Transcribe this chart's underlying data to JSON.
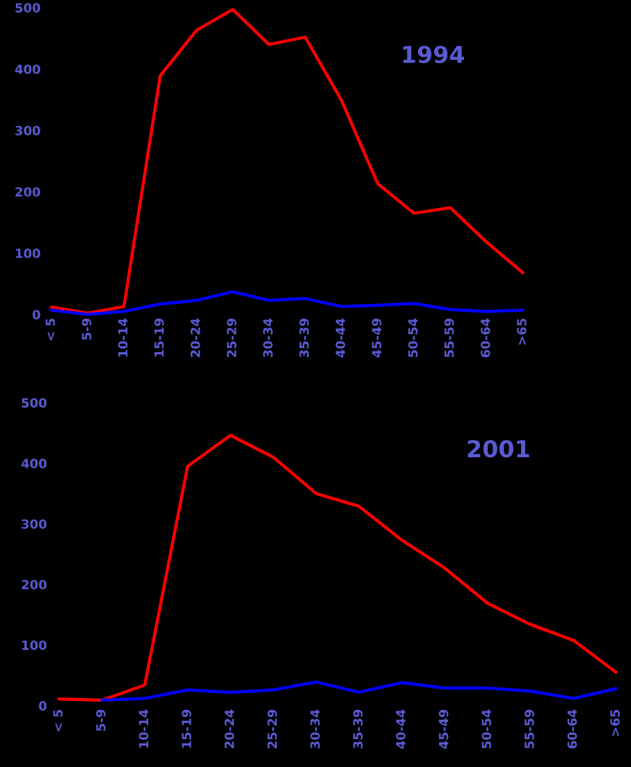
{
  "chart_data": [
    {
      "type": "line",
      "annotations": [
        "1994"
      ],
      "categories": [
        "< 5",
        "5-9",
        "10-14",
        "15-19",
        "20-24",
        "25-29",
        "30-34",
        "35-39",
        "40-44",
        "45-49",
        "50-54",
        "55-59",
        "60-64",
        ">65"
      ],
      "ylim": [
        0,
        500
      ],
      "yticks": [
        0,
        100,
        200,
        300,
        400,
        500
      ],
      "grid": false,
      "legend": false,
      "series": [
        {
          "color": "#ff0000",
          "values": [
            12,
            2,
            13,
            389,
            463,
            497,
            440,
            452,
            349,
            213,
            165,
            174,
            118,
            68
          ]
        },
        {
          "color": "#0000ff",
          "values": [
            7,
            0,
            5,
            17,
            23,
            37,
            23,
            26,
            13,
            15,
            18,
            8,
            5,
            7
          ]
        }
      ]
    },
    {
      "type": "line",
      "annotations": [
        "2001"
      ],
      "categories": [
        "< 5",
        "5-9",
        "10-14",
        "15-19",
        "20-24",
        "25-29",
        "30-34",
        "35-39",
        "40-44",
        "45-49",
        "50-54",
        "55-59",
        "60-64",
        ">65"
      ],
      "ylim": [
        0,
        500
      ],
      "yticks": [
        0,
        100,
        200,
        300,
        400,
        500
      ],
      "grid": false,
      "legend": false,
      "series": [
        {
          "color": "#ff0000",
          "values": [
            11,
            9,
            34,
            395,
            446,
            410,
            350,
            329,
            273,
            227,
            169,
            134,
            108,
            55
          ]
        },
        {
          "color": "#0000ff",
          "values": [
            null,
            9,
            12,
            26,
            22,
            26,
            39,
            22,
            38,
            29,
            29,
            24,
            12,
            28
          ]
        }
      ]
    }
  ]
}
